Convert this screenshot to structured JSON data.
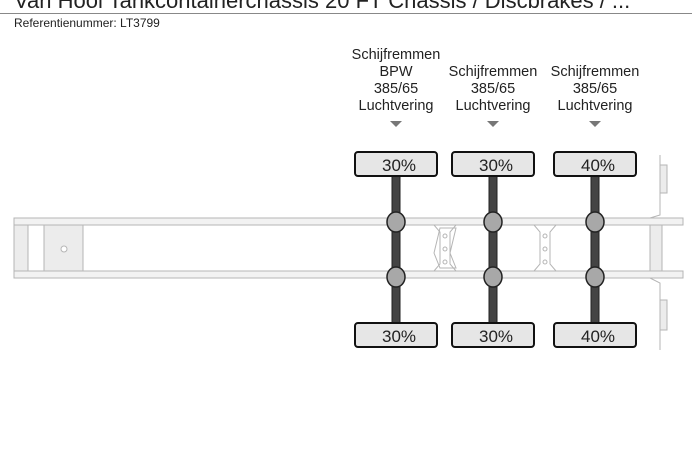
{
  "title": "Van Hool Tankcontainerchassis 20 FT Chassis / Discbrakes / ...",
  "reference": "Referentienummer: LT3799",
  "axles": [
    {
      "label_lines": [
        "Schijfremmen",
        "BPW",
        "385/65",
        "Luchtvering"
      ],
      "left_pct": "30%",
      "right_pct": "30%"
    },
    {
      "label_lines": [
        "Schijfremmen",
        "385/65",
        "Luchtvering"
      ],
      "left_pct": "30%",
      "right_pct": "30%"
    },
    {
      "label_lines": [
        "Schijfremmen",
        "385/65",
        "Luchtvering"
      ],
      "left_pct": "40%",
      "right_pct": "40%"
    }
  ],
  "colors": {
    "axle": "#444444",
    "tire_box": "#e6e6e6",
    "hub": "#a8a8a8",
    "frame": "#bdbdbd"
  }
}
